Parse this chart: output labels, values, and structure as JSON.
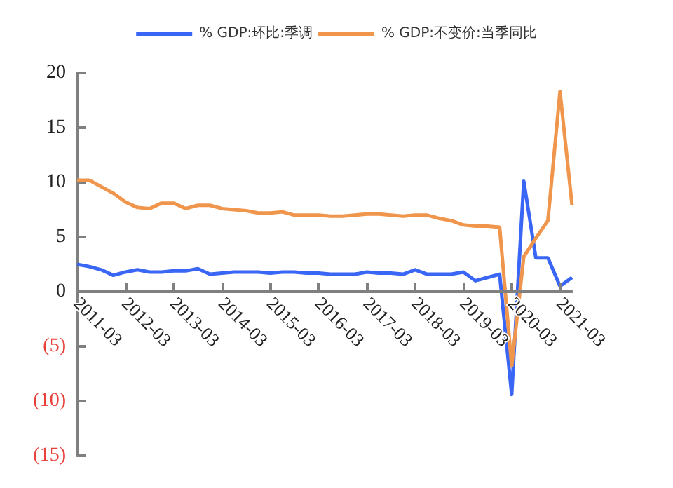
{
  "chart_data": {
    "type": "line",
    "categories": [
      "2011-03",
      null,
      null,
      null,
      "2012-03",
      null,
      null,
      null,
      "2013-03",
      null,
      null,
      null,
      "2014-03",
      null,
      null,
      null,
      "2015-03",
      null,
      null,
      null,
      "2016-03",
      null,
      null,
      null,
      "2017-03",
      null,
      null,
      null,
      "2018-03",
      null,
      null,
      null,
      "2019-03",
      null,
      null,
      null,
      "2020-03",
      null,
      null,
      null,
      "2021-03",
      null
    ],
    "series": [
      {
        "name": "% GDP:环比:季调",
        "color": "#3a66f5",
        "values": [
          2.5,
          2.3,
          2.0,
          1.5,
          1.8,
          2.0,
          1.8,
          1.8,
          1.9,
          1.9,
          2.1,
          1.6,
          1.7,
          1.8,
          1.8,
          1.8,
          1.7,
          1.8,
          1.8,
          1.7,
          1.7,
          1.6,
          1.6,
          1.6,
          1.8,
          1.7,
          1.7,
          1.6,
          2.0,
          1.6,
          1.6,
          1.6,
          1.8,
          1.0,
          1.3,
          1.6,
          -9.4,
          10.1,
          3.1,
          3.1,
          0.5,
          1.3
        ]
      },
      {
        "name": "% GDP:不变价:当季同比",
        "color": "#f0954c",
        "values": [
          10.2,
          10.2,
          9.6,
          9.0,
          8.2,
          7.7,
          7.6,
          8.1,
          8.1,
          7.6,
          7.9,
          7.9,
          7.6,
          7.5,
          7.4,
          7.2,
          7.2,
          7.3,
          7.0,
          7.0,
          7.0,
          6.9,
          6.9,
          7.0,
          7.1,
          7.1,
          7.0,
          6.9,
          7.0,
          7.0,
          6.7,
          6.5,
          6.1,
          6.0,
          6.0,
          5.9,
          -6.8,
          3.2,
          4.9,
          6.5,
          18.3,
          7.9
        ]
      }
    ],
    "ylim": [
      -15,
      20
    ],
    "yticks": [
      {
        "value": -15,
        "label": "(15)"
      },
      {
        "value": -10,
        "label": "(10)"
      },
      {
        "value": -5,
        "label": "(5)"
      },
      0,
      5,
      10,
      15,
      20
    ],
    "legend": "top",
    "marker": "none",
    "line_style": "solid"
  }
}
